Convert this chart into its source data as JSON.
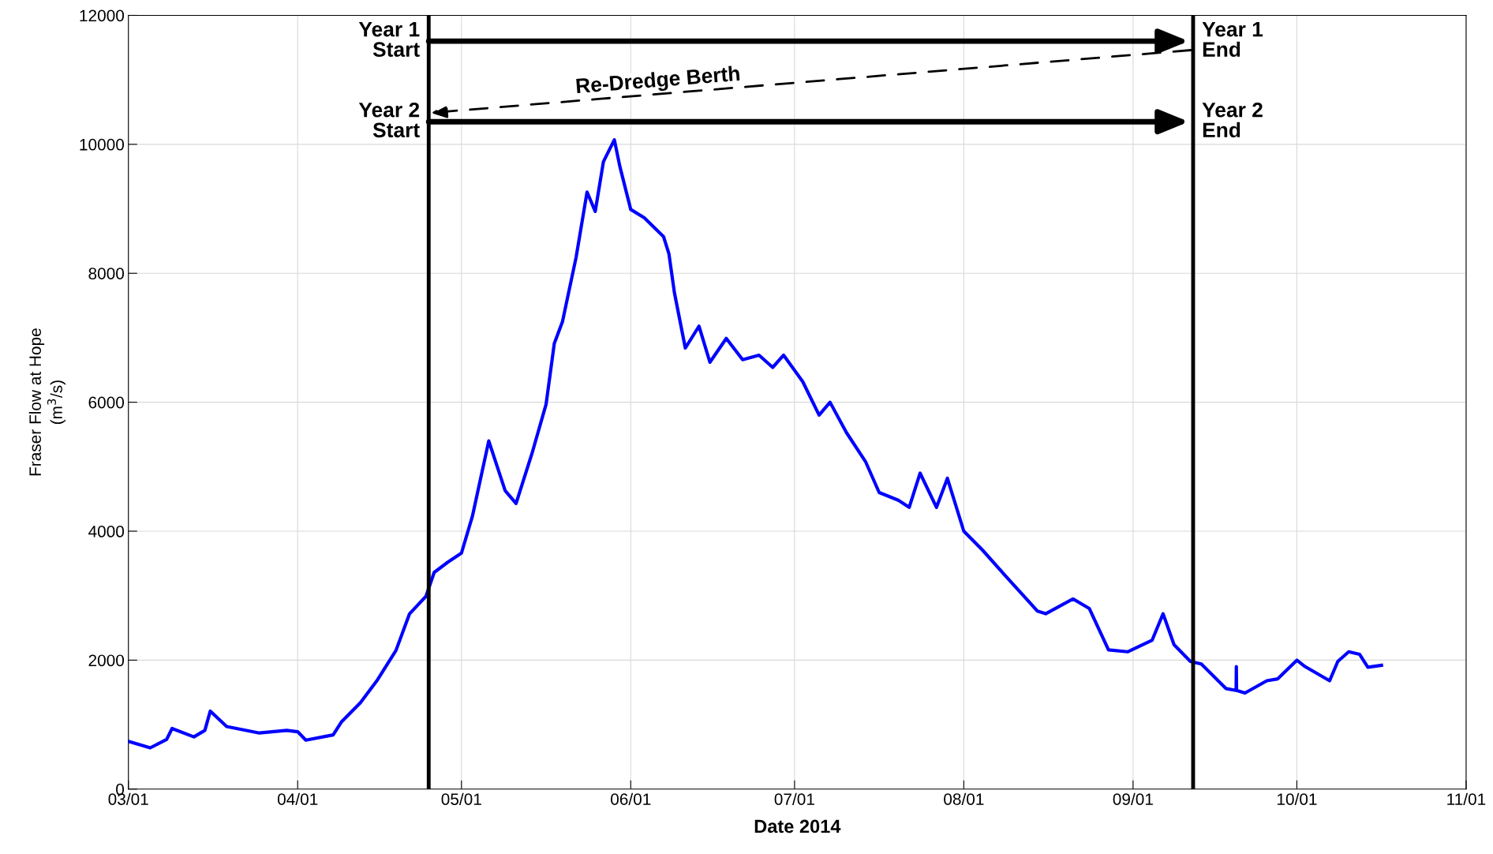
{
  "chart_data": {
    "type": "line",
    "xlabel": "Date 2014",
    "ylabel": "Fraser Flow at Hope\n(m$^{3}$/s)",
    "x": [
      "2014-03-01",
      "2014-03-05",
      "2014-03-08",
      "2014-03-09",
      "2014-03-13",
      "2014-03-15",
      "2014-03-16",
      "2014-03-19",
      "2014-03-25",
      "2014-03-30",
      "2014-04-01",
      "2014-04-02T12:00",
      "2014-04-07T12:00",
      "2014-04-09",
      "2014-04-12T12:00",
      "2014-04-15T12:00",
      "2014-04-19",
      "2014-04-21T12:00",
      "2014-04-24T12:00",
      "2014-04-26",
      "2014-04-28T12:00",
      "2014-05-01",
      "2014-05-03",
      "2014-05-06",
      "2014-05-09",
      "2014-05-11",
      "2014-05-14",
      "2014-05-16T12:00",
      "2014-05-18",
      "2014-05-19T12:00",
      "2014-05-22",
      "2014-05-24",
      "2014-05-25T12:00",
      "2014-05-27",
      "2014-05-29",
      "2014-05-30",
      "2014-06-01",
      "2014-06-03T12:00",
      "2014-06-07",
      "2014-06-08",
      "2014-06-09",
      "2014-06-11",
      "2014-06-13T12:00",
      "2014-06-15T12:00",
      "2014-06-18T12:00",
      "2014-06-21T12:00",
      "2014-06-24T12:00",
      "2014-06-27",
      "2014-06-29",
      "2014-07-02T12:00",
      "2014-07-05T12:00",
      "2014-07-07T12:00",
      "2014-07-10T12:00",
      "2014-07-14",
      "2014-07-16T12:00",
      "2014-07-20",
      "2014-07-22",
      "2014-07-24",
      "2014-07-27",
      "2014-07-29",
      "2014-08-01",
      "2014-08-04T12:00",
      "2014-08-08T12:00",
      "2014-08-14T12:00",
      "2014-08-16",
      "2014-08-21",
      "2014-08-24",
      "2014-08-27T12:00",
      "2014-08-31",
      "2014-09-04T12:00",
      "2014-09-06T12:00",
      "2014-09-08T12:00",
      "2014-09-11T12:00",
      "2014-09-13T12:00",
      "2014-09-18",
      "2014-09-19T21:00",
      "2014-09-19T22:00",
      "2014-09-19T23:00",
      "2014-09-21T12:00",
      "2014-09-25T12:00",
      "2014-09-27T12:00",
      "2014-10-01",
      "2014-10-02T12:00",
      "2014-10-07",
      "2014-10-08T12:00",
      "2014-10-10T12:00",
      "2014-10-12T12:00",
      "2014-10-14",
      "2014-10-16T12:00"
    ],
    "series": [
      {
        "color": "#0000ff",
        "values": [
          740,
          640,
          770,
          940,
          810,
          910,
          1210,
          970,
          870,
          910,
          890,
          760,
          840,
          1040,
          1340,
          1680,
          2150,
          2720,
          2990,
          3360,
          3520,
          3660,
          4230,
          5400,
          4630,
          4430,
          5230,
          5970,
          6910,
          7250,
          8250,
          9260,
          8960,
          9730,
          10070,
          9660,
          8990,
          8860,
          8570,
          8300,
          7700,
          6840,
          7180,
          6620,
          6990,
          6660,
          6730,
          6540,
          6730,
          6320,
          5800,
          6000,
          5530,
          5080,
          4600,
          4480,
          4370,
          4900,
          4370,
          4820,
          4000,
          3700,
          3320,
          2760,
          2720,
          2950,
          2800,
          2160,
          2130,
          2310,
          2720,
          2240,
          1980,
          1940,
          1560,
          1530,
          1900,
          1530,
          1490,
          1680,
          1710,
          2000,
          1900,
          1680,
          1980,
          2130,
          2090,
          1890,
          1920
        ]
      }
    ],
    "xlim": [
      "2014-03-01",
      "2014-11-01"
    ],
    "xticks": [
      {
        "value": "2014-03-01",
        "label": "03/01"
      },
      {
        "value": "2014-04-01",
        "label": "04/01"
      },
      {
        "value": "2014-05-01",
        "label": "05/01"
      },
      {
        "value": "2014-06-01",
        "label": "06/01"
      },
      {
        "value": "2014-07-01",
        "label": "07/01"
      },
      {
        "value": "2014-08-01",
        "label": "08/01"
      },
      {
        "value": "2014-09-01",
        "label": "09/01"
      },
      {
        "value": "2014-10-01",
        "label": "10/01"
      },
      {
        "value": "2014-11-01",
        "label": "11/01"
      }
    ],
    "ylim": [
      0,
      12000
    ],
    "yticks": [
      0,
      2000,
      4000,
      6000,
      8000,
      10000,
      12000
    ],
    "grid": true,
    "line_style": "solid",
    "marker": "none",
    "ref_lines": [
      {
        "axis": "x",
        "value": "2014-04-25",
        "color": "#000000",
        "line_style": "solid"
      },
      {
        "axis": "x",
        "value": "2014-09-12",
        "color": "#000000",
        "line_style": "solid"
      }
    ],
    "annotations": [
      {
        "text": "Year 1\nStart",
        "x": "2014-04-25",
        "y": 11600
      },
      {
        "text": "Year 1\nEnd",
        "x": "2014-09-12",
        "y": 11600
      },
      {
        "text": "Year 2\nStart",
        "x": "2014-04-25",
        "y": 10350
      },
      {
        "text": "Year 2\nEnd",
        "x": "2014-09-12",
        "y": 10350
      },
      "Re-Dredge Berth"
    ]
  }
}
